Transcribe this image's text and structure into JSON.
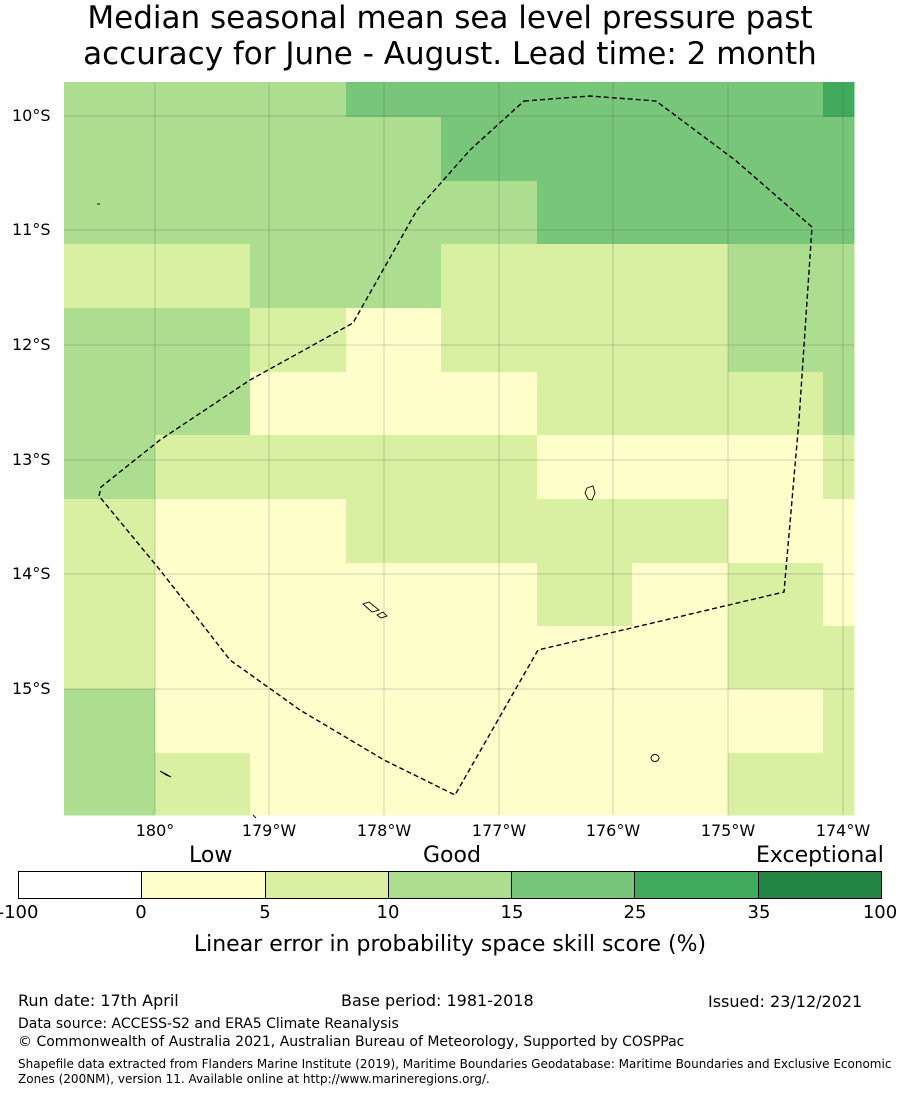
{
  "title": {
    "line1": "Median seasonal mean sea level pressure past",
    "line2": "accuracy for June - August. Lead time: 2 month"
  },
  "map": {
    "lat_labels": [
      "10°S",
      "11°S",
      "12°S",
      "13°S",
      "14°S",
      "15°S"
    ],
    "lon_labels": [
      "180°",
      "179°W",
      "178°W",
      "177°W",
      "176°W",
      "175°W",
      "174°W"
    ],
    "grid_rows": [
      [
        3,
        3,
        3,
        4,
        4,
        4,
        4,
        4,
        5
      ],
      [
        3,
        3,
        3,
        3,
        4,
        4,
        4,
        4,
        4
      ],
      [
        3,
        3,
        3,
        3,
        3,
        4,
        4,
        4,
        4
      ],
      [
        2,
        2,
        3,
        3,
        2,
        2,
        2,
        3,
        3
      ],
      [
        3,
        3,
        2,
        1,
        2,
        2,
        2,
        3,
        3
      ],
      [
        3,
        3,
        1,
        1,
        1,
        2,
        2,
        2,
        3
      ],
      [
        3,
        2,
        2,
        2,
        2,
        1,
        1,
        1,
        2
      ],
      [
        2,
        1,
        1,
        2,
        2,
        2,
        2,
        1,
        1
      ],
      [
        2,
        1,
        1,
        1,
        1,
        2,
        1,
        2,
        1
      ],
      [
        2,
        1,
        1,
        1,
        1,
        1,
        1,
        2,
        2
      ],
      [
        3,
        1,
        1,
        1,
        1,
        1,
        1,
        1,
        2
      ],
      [
        3,
        2,
        1,
        1,
        1,
        1,
        1,
        2,
        2
      ]
    ],
    "colors": [
      "#ffffff",
      "#ffffcc",
      "#d9f0a3",
      "#addd8e",
      "#78c679",
      "#41ab5d",
      "#238443"
    ]
  },
  "legend": {
    "categories": [
      "Low",
      "Good",
      "Exceptional"
    ],
    "ticks": [
      "-100",
      "0",
      "5",
      "10",
      "15",
      "25",
      "35",
      "100"
    ],
    "label": "Linear error in probability space skill score (%)"
  },
  "footer": {
    "run_date": "Run date: 17th April",
    "base_period": "Base period: 1981-2018",
    "issued": "Issued: 23/12/2021",
    "data_source": "Data source: ACCESS-S2 and ERA5 Climate Reanalysis",
    "copyright": "© Commonwealth of Australia 2021, Australian Bureau of Meteorology, Supported by COSPPac",
    "shapefile": "Shapefile data extracted from Flanders Marine Institute (2019), Maritime Boundaries Geodatabase: Maritime Boundaries and Exclusive Economic Zones (200NM), version 11. Available online at http://www.marineregions.org/."
  }
}
